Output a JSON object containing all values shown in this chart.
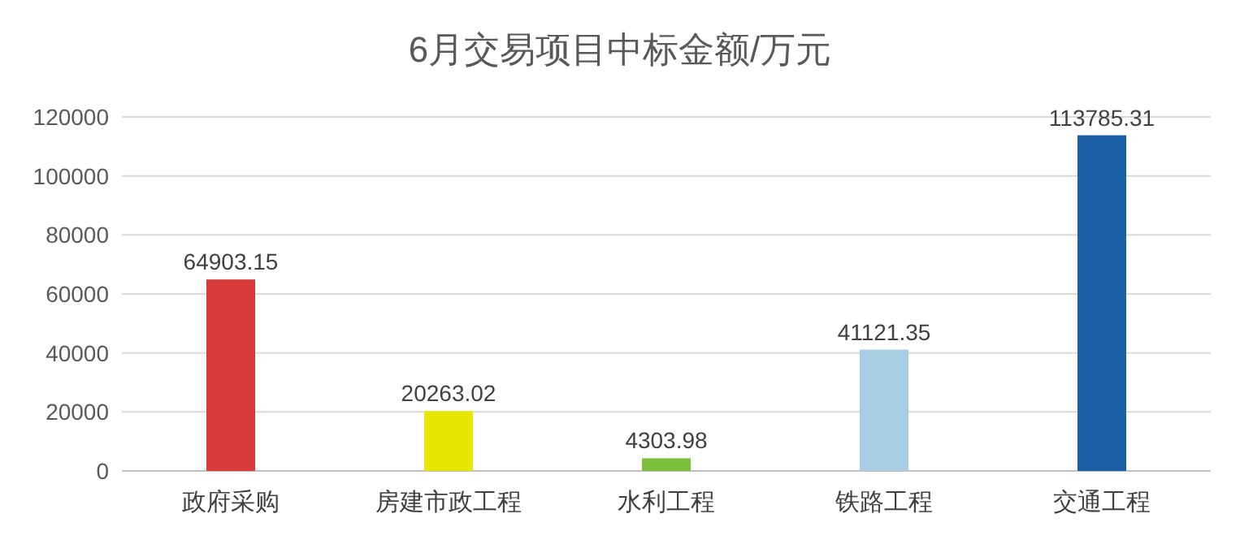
{
  "chart_data": {
    "type": "bar",
    "title": "6月交易项目中标金额/万元",
    "categories": [
      "政府采购",
      "房建市政工程",
      "水利工程",
      "铁路工程",
      "交通工程"
    ],
    "values": [
      64903.15,
      20263.02,
      4303.98,
      41121.35,
      113785.31
    ],
    "colors": [
      "#d93a3a",
      "#e6e600",
      "#7cbf3c",
      "#a9cde3",
      "#1a5ea6"
    ],
    "ylim": [
      0,
      120000
    ],
    "yticks": [
      0,
      20000,
      40000,
      60000,
      80000,
      100000,
      120000
    ],
    "grid": "y",
    "data_labels": true
  }
}
